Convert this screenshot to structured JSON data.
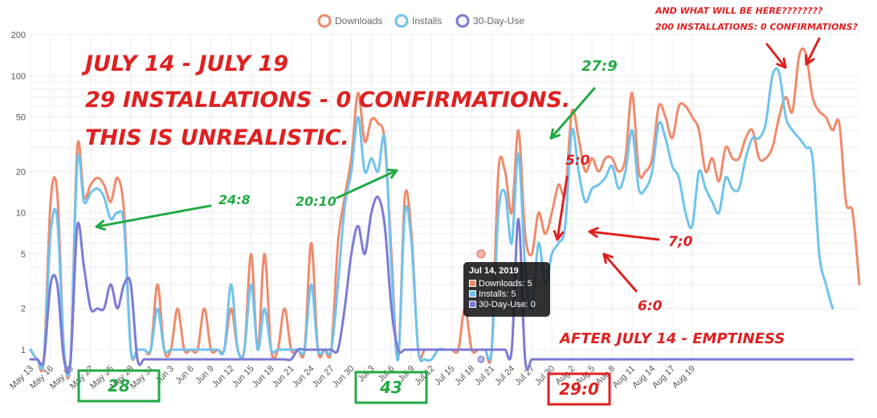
{
  "legend": [
    {
      "name": "Downloads",
      "color": "#f08a6a"
    },
    {
      "name": "Installs",
      "color": "#6fc3ee"
    },
    {
      "name": "30-Day-Use",
      "color": "#7b7ad6"
    }
  ],
  "tooltip": {
    "title": "Jul 14, 2019",
    "rows": [
      "Downloads: 5",
      "Installs: 5",
      "30-Day-Use: 0"
    ]
  },
  "annotations": {
    "main_line1": "JULY 14 - JULY 19",
    "main_line2": "29 INSTALLATIONS - 0 CONFIRMATIONS.",
    "main_line3": "THIS IS UNREALISTIC.",
    "ratio_24_8": "24:8",
    "ratio_20_10": "20:10",
    "ratio_27_9": "27:9",
    "ratio_5_0": "5:0",
    "ratio_7_0": "7;0",
    "ratio_6_0": "6:0",
    "after": "AFTER JULY 14 - EMPTINESS",
    "question1": "AND WHAT WILL BE HERE????????",
    "question2": "200 INSTALLATIONS: 0 CONFIRMATIONS?",
    "box_28": "28",
    "box_43": "43",
    "box_29_0": "29:0"
  },
  "chart_data": {
    "type": "line",
    "y_scale": "log",
    "ylim": [
      1,
      200
    ],
    "yticks": [
      1,
      2,
      5,
      10,
      20,
      50,
      100,
      200
    ],
    "x_tick_labels": [
      "May 13",
      "May 16",
      "May 19",
      "May 22",
      "May 25",
      "May 28",
      "May 31",
      "Jun 3",
      "Jun 6",
      "Jun 9",
      "Jun 12",
      "Jun 15",
      "Jun 18",
      "Jun 21",
      "Jun 24",
      "Jun 27",
      "Jun 30",
      "Jul 3",
      "Jul 6",
      "Jul 9",
      "Jul 12",
      "Jul 15",
      "Jul 18",
      "Jul 21",
      "Jul 24",
      "Jul 27",
      "Jul 30",
      "Aug 2",
      "Aug 5",
      "Aug 8",
      "Aug 11",
      "Aug 14",
      "Aug 17",
      "Aug 19"
    ],
    "x_start": "May 13",
    "grid": true,
    "legend_position": "top",
    "series": [
      {
        "name": "Downloads",
        "values": [
          1,
          0.8,
          0.8,
          12,
          14,
          1,
          0.8,
          30,
          13,
          16,
          18,
          16,
          12,
          18,
          10,
          1,
          1,
          1,
          1,
          3,
          1,
          1,
          2,
          1,
          1,
          1,
          2,
          1,
          1,
          1,
          2,
          1,
          1,
          5,
          1,
          5,
          1,
          1,
          2,
          1,
          1,
          1,
          6,
          1,
          1,
          1,
          6,
          13,
          25,
          75,
          33,
          48,
          45,
          33,
          5,
          0.8,
          13,
          7,
          1,
          1,
          1,
          1,
          1,
          1,
          1,
          2,
          1,
          1,
          1,
          1,
          20,
          20,
          10,
          40,
          7,
          5,
          10,
          7,
          10,
          16,
          14,
          55,
          35,
          20,
          25,
          20,
          25,
          25,
          20,
          25,
          75,
          20,
          20,
          25,
          60,
          50,
          35,
          60,
          60,
          50,
          40,
          20,
          25,
          17,
          30,
          25,
          25,
          35,
          40,
          25,
          25,
          30,
          50,
          70,
          55,
          140,
          145,
          70,
          55,
          50,
          40,
          45,
          12,
          10,
          3
        ]
      },
      {
        "name": "Installs",
        "values": [
          1,
          0.8,
          0.8,
          7,
          9,
          1,
          0.8,
          24,
          12,
          14,
          15,
          13,
          9,
          10,
          8,
          1,
          1,
          1,
          1,
          2,
          1,
          1,
          1,
          1,
          1,
          1,
          1,
          1,
          1,
          1,
          3,
          1,
          1,
          3,
          1,
          2,
          1,
          1,
          1,
          1,
          1,
          1,
          3,
          1,
          1,
          1,
          3,
          11,
          20,
          50,
          20,
          25,
          20,
          35,
          4,
          0.8,
          10,
          6,
          1,
          0.8,
          0.8,
          1,
          1,
          1,
          1,
          1,
          1,
          1,
          1,
          1,
          10,
          14,
          6,
          27,
          4,
          2,
          6,
          3,
          5,
          6,
          8,
          40,
          20,
          12,
          15,
          16,
          18,
          22,
          15,
          20,
          40,
          15,
          15,
          20,
          45,
          35,
          22,
          18,
          10,
          8,
          20,
          15,
          12,
          10,
          18,
          15,
          15,
          25,
          35,
          35,
          45,
          100,
          105,
          50,
          40,
          35,
          30,
          25,
          5,
          3,
          2
        ]
      },
      {
        "name": "30-Day-Use",
        "values": [
          0.85,
          0.85,
          0.85,
          3,
          3,
          0.85,
          0.85,
          8,
          4,
          2,
          2,
          2,
          3,
          2,
          3,
          3,
          0.85,
          0.85,
          0.85,
          0.85,
          0.85,
          0.85,
          0.85,
          0.85,
          0.85,
          0.85,
          0.85,
          0.85,
          0.85,
          0.85,
          0.85,
          0.85,
          0.85,
          0.85,
          0.85,
          0.85,
          0.85,
          0.85,
          0.85,
          0.85,
          1,
          1,
          1,
          1,
          1,
          1,
          1,
          2,
          5,
          8,
          5,
          10,
          13,
          8,
          2,
          1,
          1,
          1,
          1,
          1,
          1,
          1,
          1,
          1,
          1,
          1,
          1,
          1,
          1,
          1,
          1,
          1,
          1,
          9,
          0.85,
          0.85,
          0.85,
          0.85,
          0.85,
          0.85,
          0.85,
          0.85,
          0.85,
          0.85,
          0.85,
          0.85,
          0.85,
          0.85,
          0.85,
          0.85,
          0.85,
          0.85,
          0.85,
          0.85,
          0.85,
          0.85,
          0.85,
          0.85,
          0.85,
          0.85,
          0.85,
          0.85,
          0.85,
          0.85,
          0.85,
          0.85,
          0.85,
          0.85,
          0.85,
          0.85,
          0.85,
          0.85,
          0.85,
          0.85,
          0.85,
          0.85,
          0.85,
          0.85,
          0.85,
          0.85,
          0.85,
          0.85,
          0.85,
          0.85
        ]
      }
    ]
  }
}
